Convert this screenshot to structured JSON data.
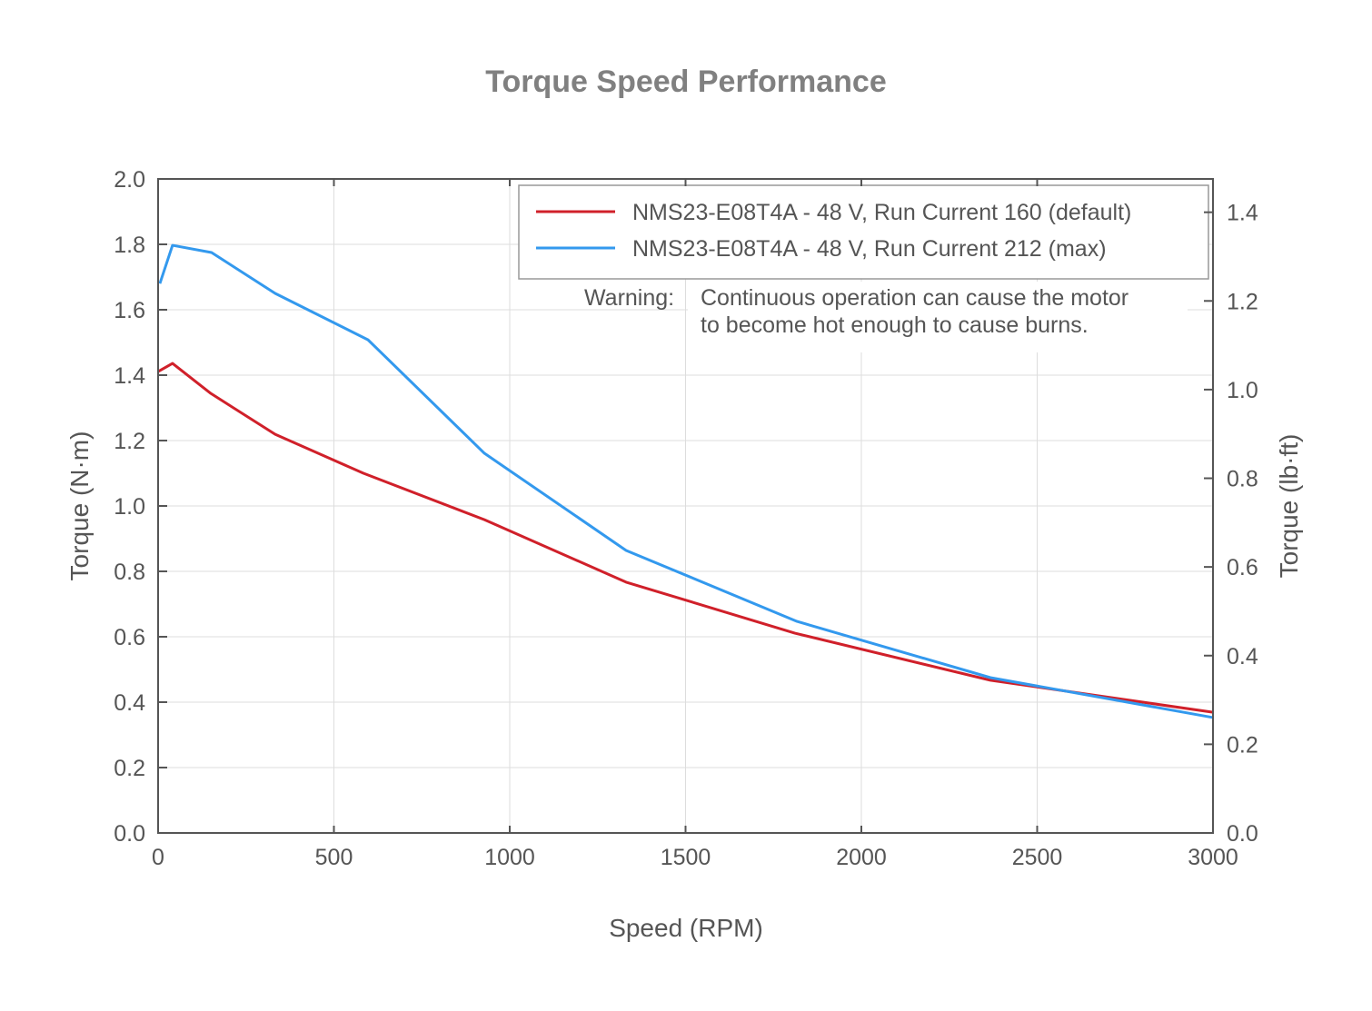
{
  "chart_data": {
    "type": "line",
    "title": "Torque Speed Performance",
    "xlabel": "Speed (RPM)",
    "ylabel": "Torque (N·m)",
    "ylabel_right": "Torque (lb·ft)",
    "xlim": [
      0,
      3000
    ],
    "ylim": [
      0,
      2.0
    ],
    "ylim_right": [
      0,
      1.475
    ],
    "x_ticks": [
      "0",
      "500",
      "1000",
      "1500",
      "2000",
      "2500",
      "3000"
    ],
    "y_ticks": [
      "0.0",
      "0.2",
      "0.4",
      "0.6",
      "0.8",
      "1.0",
      "1.2",
      "1.4",
      "1.6",
      "1.8",
      "2.0"
    ],
    "y_ticks_right": [
      "0.0",
      "0.2",
      "0.4",
      "0.6",
      "0.8",
      "1.0",
      "1.2",
      "1.4"
    ],
    "grid": true,
    "legend_position": "top-right",
    "series": [
      {
        "name": "NMS23-E08T4A - 48 V, Run Current 160 (default)",
        "color": "#d0202a",
        "x": [
          0,
          41,
          150,
          333,
          584,
          928,
          1331,
          1811,
          2367,
          3000
        ],
        "y": [
          1.411,
          1.436,
          1.344,
          1.219,
          1.1,
          0.958,
          0.767,
          0.611,
          0.467,
          0.369
        ]
      },
      {
        "name": "NMS23-E08T4A - 48 V, Run Current 212 (max)",
        "color": "#3399ee",
        "x": [
          5,
          41,
          152,
          333,
          597,
          928,
          1331,
          1817,
          2367,
          3000
        ],
        "y": [
          1.68,
          1.797,
          1.775,
          1.65,
          1.508,
          1.161,
          0.864,
          0.647,
          0.475,
          0.353
        ]
      }
    ],
    "annotation": {
      "label": "Warning:",
      "lines": [
        "Continuous operation can cause the motor",
        "to become hot enough to cause burns."
      ]
    }
  }
}
